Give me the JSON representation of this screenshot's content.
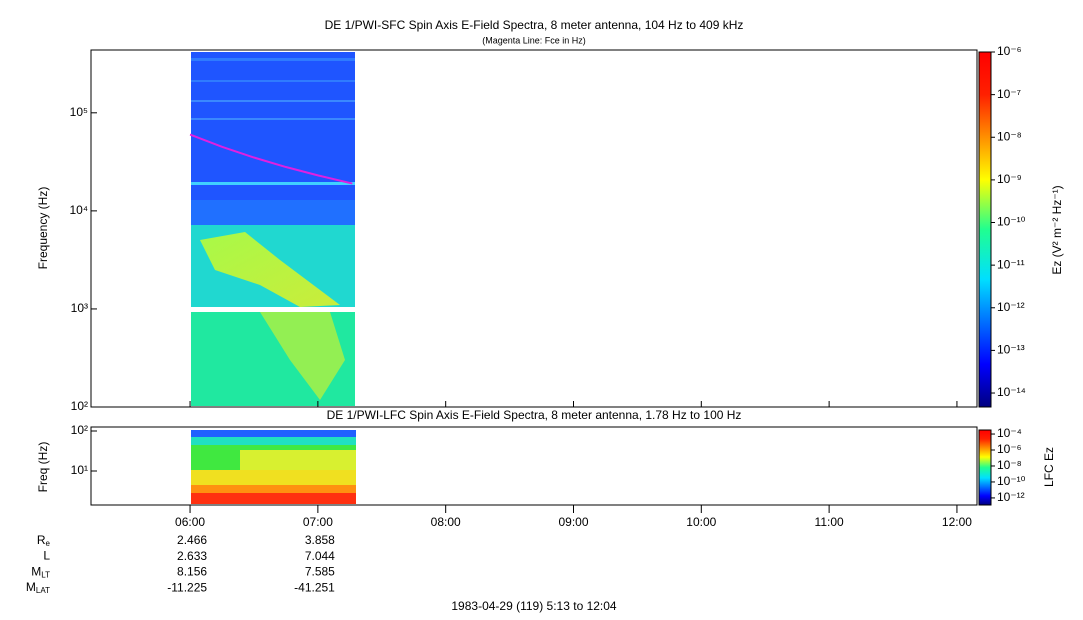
{
  "chart_data": {
    "type": "spectrogram",
    "title": "DE 1/PWI-SFC  Spin Axis E-Field Spectra, 8 meter antenna, 104 Hz to 409 kHz",
    "subtitle": "(Magenta Line: Fce in Hz)",
    "y_label": "Frequency (Hz)",
    "ylog": true,
    "ylim": [
      100,
      437000
    ],
    "yticks": [
      {
        "value": 100,
        "label": "10²"
      },
      {
        "value": 1000,
        "label": "10³"
      },
      {
        "value": 10000,
        "label": "10⁴"
      },
      {
        "value": 100000,
        "label": "10⁵"
      }
    ],
    "colorbar_label": "Ez (V² m⁻² Hz⁻¹)",
    "clim": [
      4.7e-15,
      1e-06
    ],
    "cticks": [
      {
        "value": 1e-14,
        "label": "10⁻¹⁴"
      },
      {
        "value": 1e-13,
        "label": "10⁻¹³"
      },
      {
        "value": 1e-12,
        "label": "10⁻¹²"
      },
      {
        "value": 1e-11,
        "label": "10⁻¹¹"
      },
      {
        "value": 1e-10,
        "label": "10⁻¹⁰"
      },
      {
        "value": 1e-09,
        "label": "10⁻⁹"
      },
      {
        "value": 1e-08,
        "label": "10⁻⁸"
      },
      {
        "value": 1e-07,
        "label": "10⁻⁷"
      },
      {
        "value": 1e-06,
        "label": "10⁻⁶"
      }
    ],
    "fce_line": {
      "color": "#e020e0",
      "x": [
        6.0,
        6.25,
        6.5,
        6.75,
        7.0,
        7.27
      ],
      "values": [
        60000,
        45000,
        35000,
        28000,
        23000,
        19000
      ]
    },
    "lower": {
      "title": "DE 1/PWI-LFC  Spin Axis E-Field Spectra, 8 meter antenna, 1.78 Hz to 100 Hz",
      "y_label": "Freq (Hz)",
      "ylim": [
        1.41,
        126
      ],
      "yticks": [
        {
          "value": 10,
          "label": "10¹"
        },
        {
          "value": 100,
          "label": "10²"
        }
      ],
      "colorbar_label": "LFC Ez",
      "clim": [
        1.3e-13,
        0.00032
      ],
      "cticks": [
        {
          "value": 1e-12,
          "label": "10⁻¹²"
        },
        {
          "value": 1e-10,
          "label": "10⁻¹⁰"
        },
        {
          "value": 1e-08,
          "label": "10⁻⁸"
        },
        {
          "value": 1e-06,
          "label": "10⁻⁶"
        },
        {
          "value": 0.0001,
          "label": "10⁻⁴"
        }
      ]
    },
    "xlim": [
      5.225,
      12.157
    ],
    "xticks": [
      {
        "value": 6,
        "label": "06:00"
      },
      {
        "value": 7,
        "label": "07:00"
      },
      {
        "value": 8,
        "label": "08:00"
      },
      {
        "value": 9,
        "label": "09:00"
      },
      {
        "value": 10,
        "label": "10:00"
      },
      {
        "value": 11,
        "label": "11:00"
      },
      {
        "value": 12,
        "label": "12:00"
      }
    ],
    "ephemeris": [
      {
        "name": "R",
        "sub": "e",
        "values": [
          2.466,
          3.858
        ]
      },
      {
        "name": "L",
        "values": [
          2.633,
          7.044
        ]
      },
      {
        "name": "M",
        "sub": "LT",
        "values": [
          8.156,
          7.585
        ]
      },
      {
        "name": "M",
        "sub": "LAT",
        "values": [
          -11.225,
          -41.251
        ]
      }
    ],
    "footer": "1983-04-29 (119) 5:13 to 12:04"
  }
}
